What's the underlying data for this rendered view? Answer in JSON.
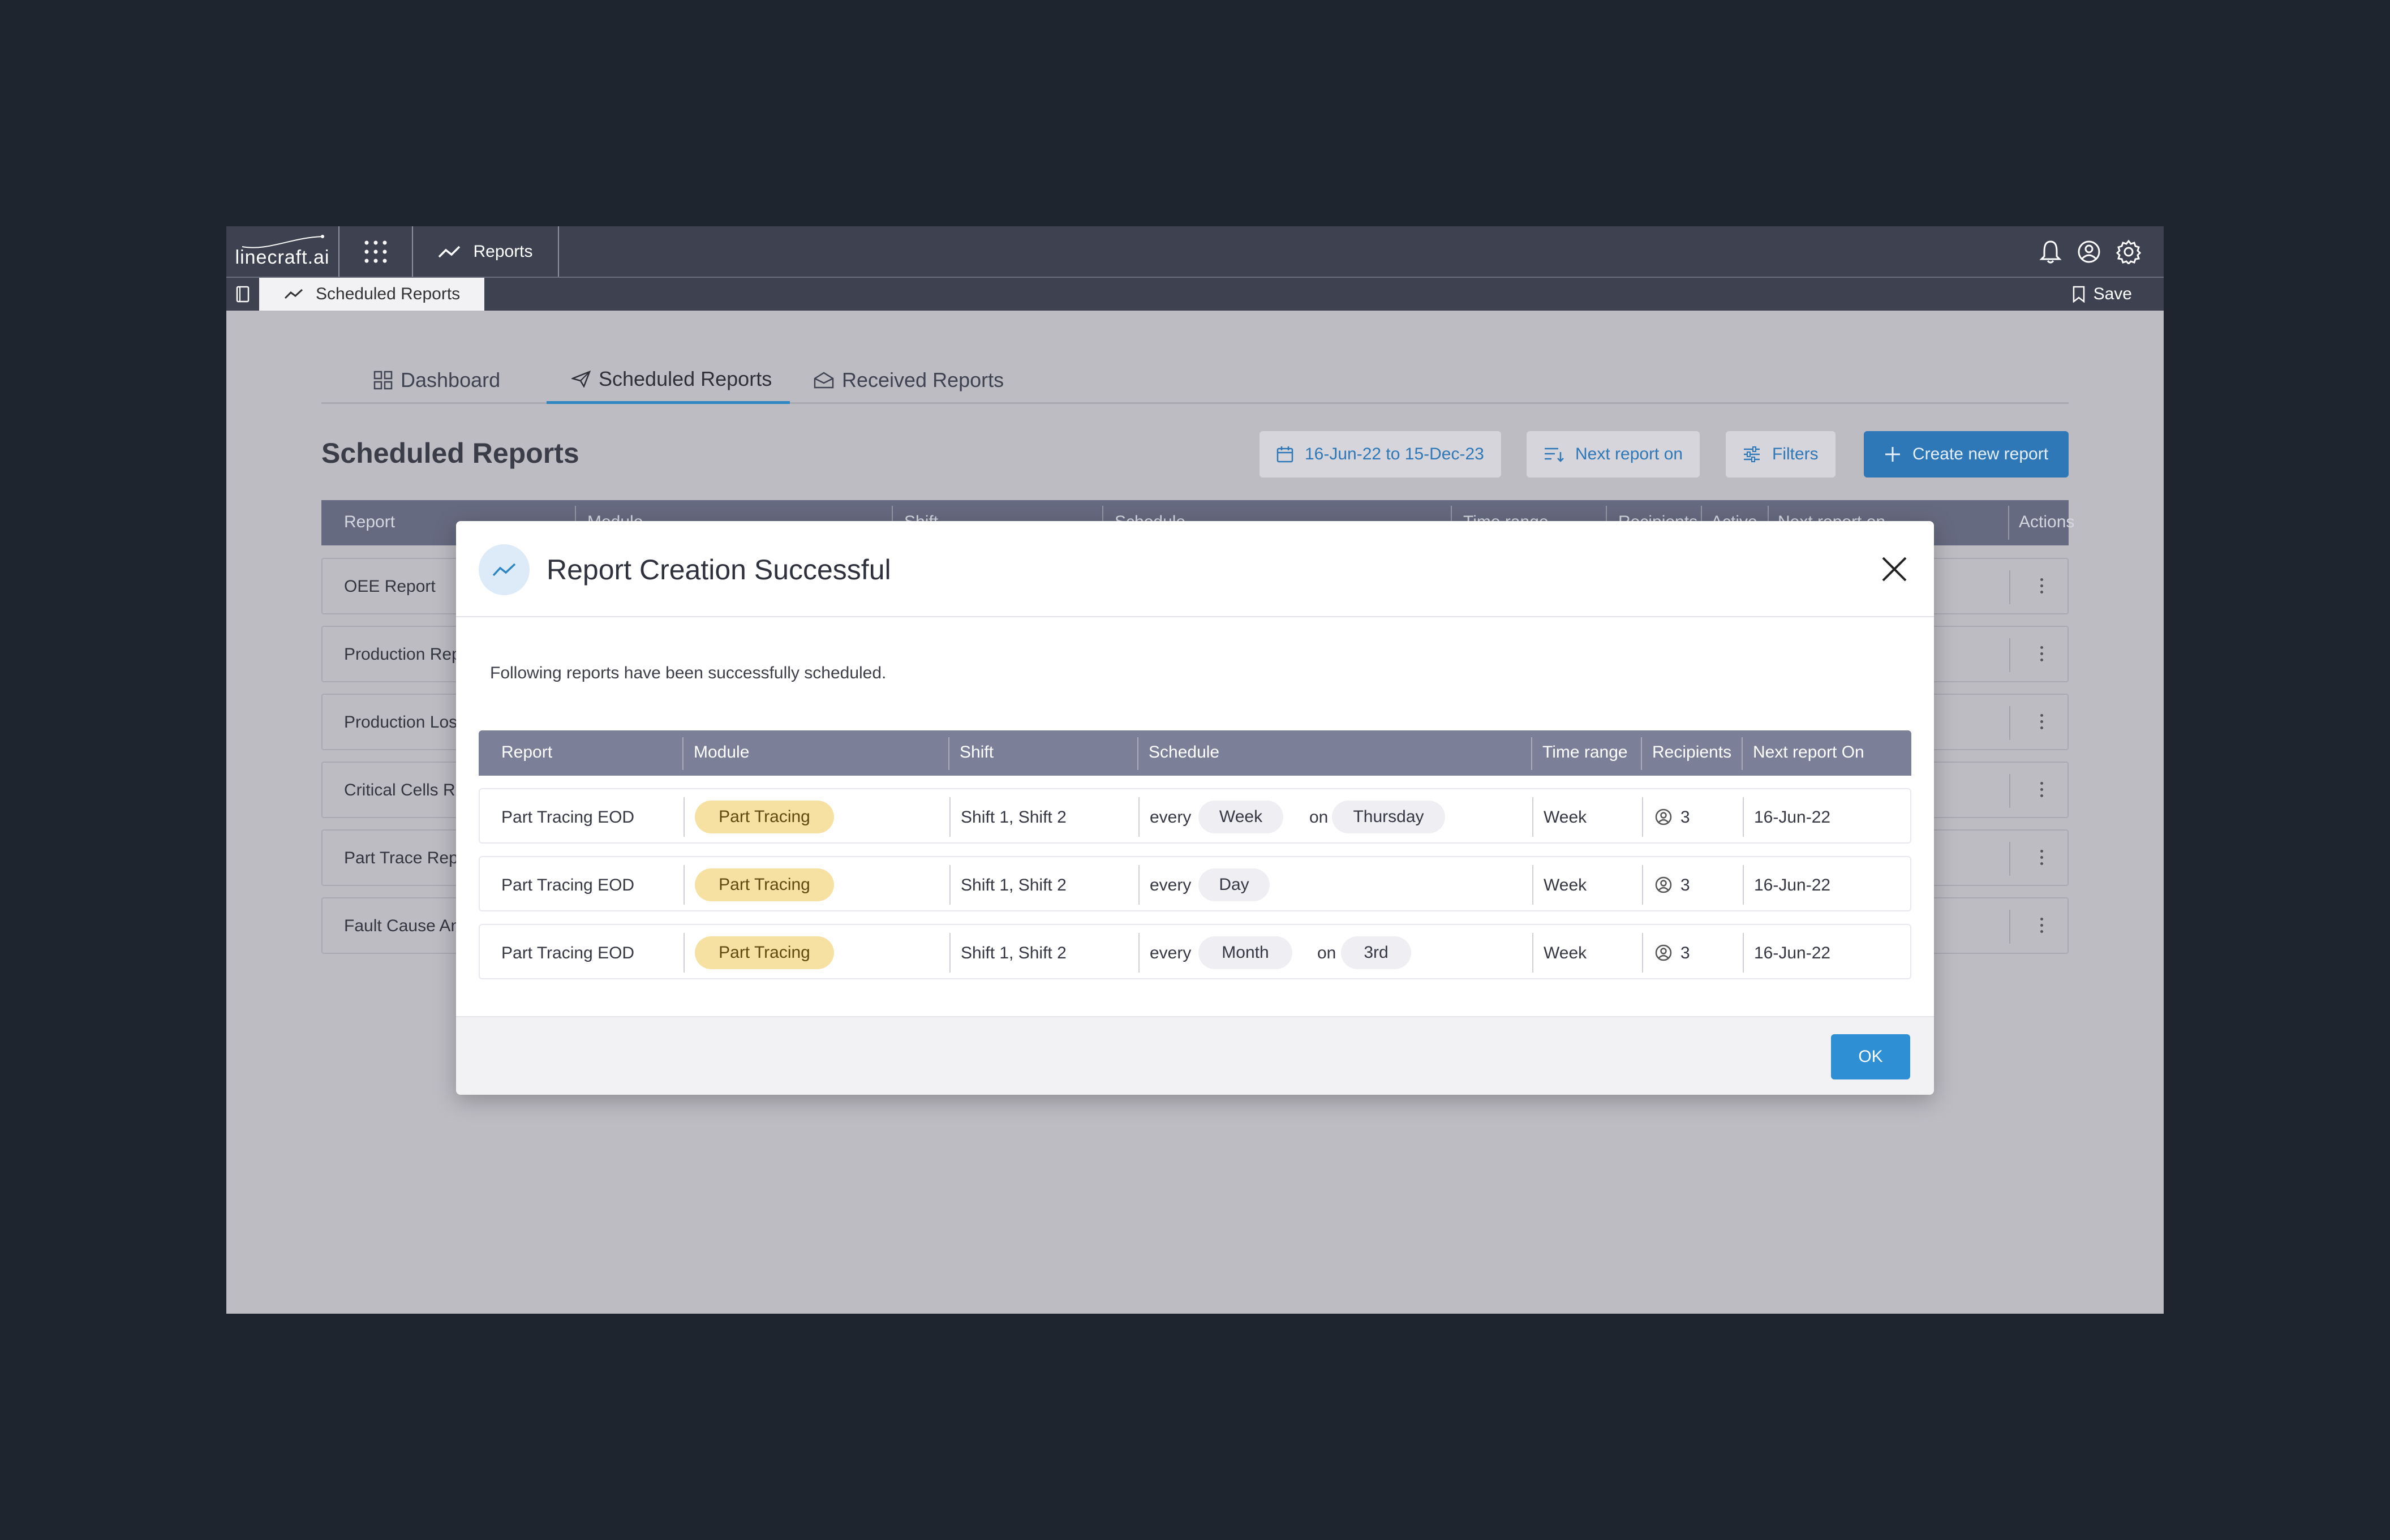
{
  "app": {
    "logo_text": "linecraft.ai",
    "module_name": "Reports",
    "active_tab": "Scheduled Reports",
    "save_label": "Save"
  },
  "page_tabs": [
    {
      "label": "Dashboard",
      "icon": "grid-icon"
    },
    {
      "label": "Scheduled Reports",
      "icon": "send-icon",
      "active": true
    },
    {
      "label": "Received Reports",
      "icon": "inbox-icon"
    }
  ],
  "page_title": "Scheduled Reports",
  "toolbar": {
    "date_range": "16-Jun-22 to 15-Dec-23",
    "sort_label": "Next report on",
    "filters_label": "Filters",
    "create_label": "Create new report"
  },
  "bg_table": {
    "columns": [
      "Report",
      "Module",
      "Shift",
      "Schedule",
      "Time range",
      "Recipients",
      "Active",
      "Next report on",
      "Actions"
    ],
    "rows": [
      "OEE Report",
      "Production Rep",
      "Production Los",
      "Critical Cells Re",
      "Part Trace Rep",
      "Fault Cause An"
    ]
  },
  "modal": {
    "title": "Report Creation Successful",
    "message": "Following reports have been successfully scheduled.",
    "columns": [
      "Report",
      "Module",
      "Shift",
      "Schedule",
      "Time range",
      "Recipients",
      "Next report On"
    ],
    "rows": [
      {
        "report": "Part Tracing EOD",
        "module": "Part Tracing",
        "shift": "Shift 1, Shift 2",
        "every": "every",
        "period": "Week",
        "on": "on",
        "day": "Thursday",
        "time_range": "Week",
        "recipients": "3",
        "next": "16-Jun-22"
      },
      {
        "report": "Part Tracing EOD",
        "module": "Part Tracing",
        "shift": "Shift 1, Shift 2",
        "every": "every",
        "period": "Day",
        "time_range": "Week",
        "recipients": "3",
        "next": "16-Jun-22"
      },
      {
        "report": "Part Tracing EOD",
        "module": "Part Tracing",
        "shift": "Shift 1, Shift 2",
        "every": "every",
        "period": "Month",
        "on": "on",
        "day": "3rd",
        "time_range": "Week",
        "recipients": "3",
        "next": "16-Jun-22"
      }
    ],
    "ok_label": "OK"
  },
  "colors": {
    "accent": "#2e78b7",
    "ok_button": "#2e8fd4",
    "module_pill": "#f6e1a2",
    "topbar": "#3d4150",
    "table_header": "#7b7f98"
  }
}
